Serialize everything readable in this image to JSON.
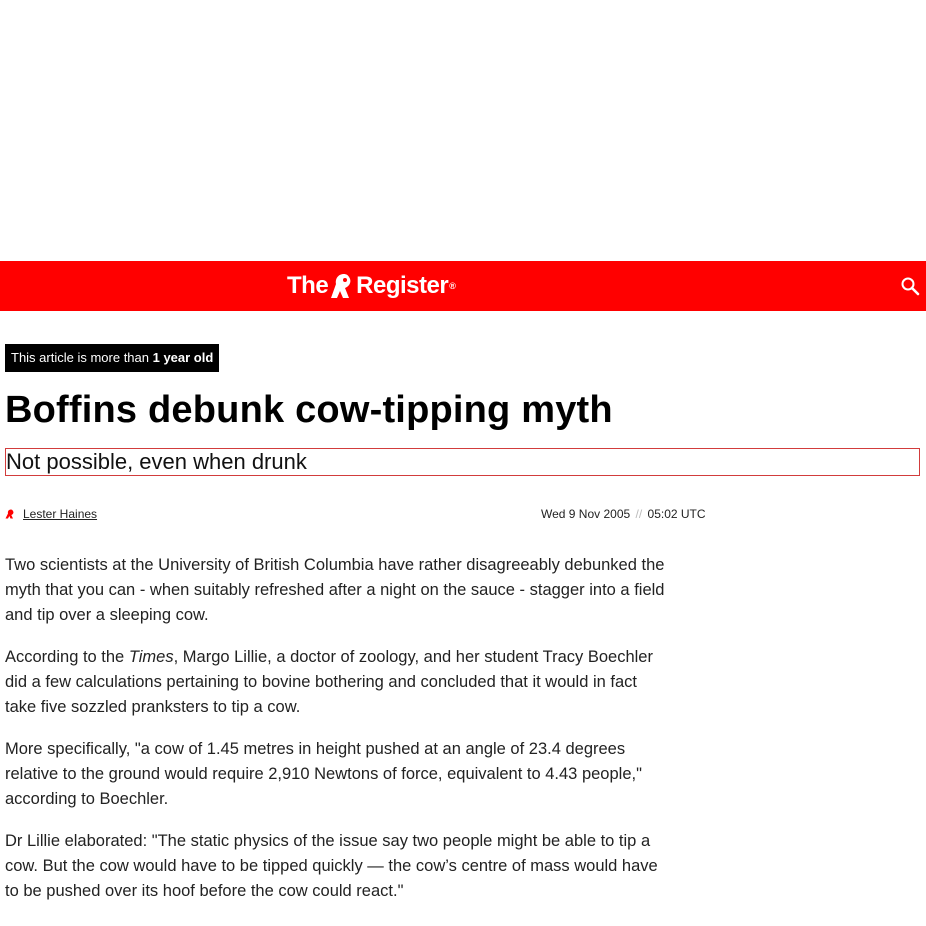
{
  "site": {
    "logo_the": "The",
    "logo_register": "Register",
    "logo_reg_mark": "®",
    "brand_color": "#ff0000",
    "search_icon": "search-icon"
  },
  "article": {
    "age_notice_prefix": "This article is more than ",
    "age_notice_bold": "1 year old",
    "title": "Boffins debunk cow-tipping myth",
    "standfirst": "Not possible, even when drunk",
    "author": "Lester Haines",
    "date": "Wed 9 Nov 2005",
    "date_separator": "//",
    "time": "05:02 UTC",
    "paragraphs": {
      "p1": "Two scientists at the University of British Columbia have rather disagreeably debunked the myth that you can - when suitably refreshed after a night on the sauce - stagger into a field and tip over a sleeping cow.",
      "p2_before": "According to the ",
      "p2_italic": "Times",
      "p2_after": ", Margo Lillie, a doctor of zoology, and her student Tracy Boechler did a few calculations pertaining to bovine bothering and concluded that it would in fact take five sozzled pranksters to tip a cow.",
      "p3": "More specifically, \"a cow of 1.45 metres in height pushed at an angle of 23.4 degrees relative to the ground would require 2,910 Newtons of force, equivalent to 4.43 people,\" according to Boechler.",
      "p4": "Dr Lillie elaborated: \"The static physics of the issue say two people might be able to tip a cow. But the cow would have to be tipped quickly — the cow’s centre of mass would have to be pushed over its hoof before the cow could react.\""
    }
  }
}
